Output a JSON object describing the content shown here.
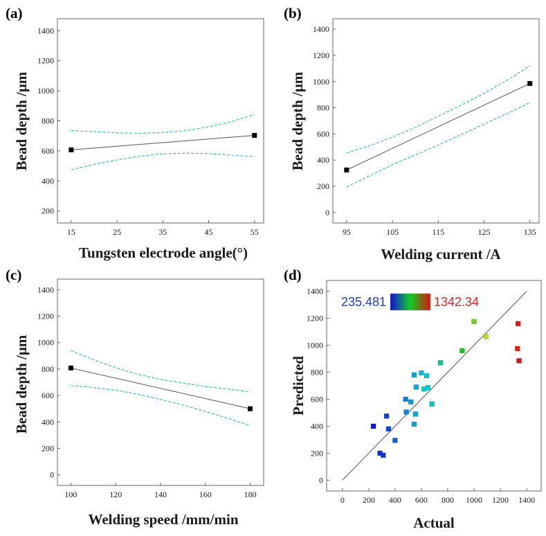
{
  "colors": {
    "fit_line": "#555555",
    "ci_line": "#22b8c8",
    "axis": "#666666",
    "colorbar_min_text": "#1f3ec8",
    "colorbar_max_text": "#e32222"
  },
  "chart_data": [
    {
      "id": "a",
      "panel_label": "(a)",
      "type": "line",
      "title": "",
      "xlabel": "Tungsten electrode angle(°)",
      "ylabel": "Bead depth /μm",
      "xlim": [
        12,
        57
      ],
      "ylim": [
        120,
        1480
      ],
      "xticks": [
        15,
        25,
        35,
        45,
        55
      ],
      "yticks": [
        200,
        400,
        600,
        800,
        1000,
        1200,
        1400
      ],
      "series": [
        {
          "name": "prediction",
          "x": [
            15,
            55
          ],
          "y": [
            607,
            703
          ]
        },
        {
          "name": "upper 95% CI",
          "x": [
            15,
            20,
            25,
            30,
            35,
            40,
            45,
            50,
            55
          ],
          "y": [
            735,
            728,
            720,
            718,
            722,
            735,
            760,
            795,
            842
          ]
        },
        {
          "name": "lower 95% CI",
          "x": [
            15,
            20,
            25,
            30,
            35,
            40,
            45,
            50,
            55
          ],
          "y": [
            475,
            510,
            540,
            565,
            580,
            585,
            582,
            572,
            562
          ]
        }
      ],
      "design_points": [
        {
          "x": 15,
          "y": 607
        },
        {
          "x": 55,
          "y": 703
        }
      ]
    },
    {
      "id": "b",
      "panel_label": "(b)",
      "type": "line",
      "title": "",
      "xlabel": "Welding current /A",
      "ylabel": "Bead depth /μm",
      "xlim": [
        92,
        137
      ],
      "ylim": [
        -80,
        1480
      ],
      "xticks": [
        95,
        105,
        115,
        125,
        135
      ],
      "yticks": [
        0,
        200,
        400,
        600,
        800,
        1000,
        1200,
        1400
      ],
      "series": [
        {
          "name": "prediction",
          "x": [
            95,
            135
          ],
          "y": [
            325,
            985
          ]
        },
        {
          "name": "upper 95% CI",
          "x": [
            95,
            100,
            105,
            110,
            115,
            120,
            125,
            130,
            135
          ],
          "y": [
            455,
            510,
            575,
            650,
            735,
            820,
            910,
            1010,
            1120
          ]
        },
        {
          "name": "lower 95% CI",
          "x": [
            95,
            100,
            105,
            110,
            115,
            120,
            125,
            130,
            135
          ],
          "y": [
            195,
            280,
            365,
            440,
            515,
            595,
            675,
            755,
            840
          ]
        }
      ],
      "design_points": [
        {
          "x": 95,
          "y": 325
        },
        {
          "x": 135,
          "y": 985
        }
      ]
    },
    {
      "id": "c",
      "panel_label": "(c)",
      "type": "line",
      "title": "",
      "xlabel": "Welding speed /mm/min",
      "ylabel": "Bead depth /μm",
      "xlim": [
        94,
        186
      ],
      "ylim": [
        -80,
        1480
      ],
      "xticks": [
        100,
        120,
        140,
        160,
        180
      ],
      "yticks": [
        0,
        200,
        400,
        600,
        800,
        1000,
        1200,
        1400
      ],
      "series": [
        {
          "name": "prediction",
          "x": [
            100,
            180
          ],
          "y": [
            808,
            500
          ]
        },
        {
          "name": "upper 95% CI",
          "x": [
            100,
            110,
            120,
            130,
            140,
            150,
            160,
            170,
            180
          ],
          "y": [
            940,
            870,
            810,
            760,
            722,
            695,
            668,
            648,
            628
          ]
        },
        {
          "name": "lower 95% CI",
          "x": [
            100,
            110,
            120,
            130,
            140,
            150,
            160,
            170,
            180
          ],
          "y": [
            675,
            660,
            640,
            610,
            570,
            528,
            480,
            428,
            372
          ]
        }
      ],
      "design_points": [
        {
          "x": 100,
          "y": 808
        },
        {
          "x": 180,
          "y": 500
        }
      ]
    },
    {
      "id": "d",
      "panel_label": "(d)",
      "type": "scatter",
      "title": "",
      "xlabel": "Actual",
      "ylabel": "Predicted",
      "xlim": [
        -120,
        1510
      ],
      "ylim": [
        -80,
        1480
      ],
      "xticks": [
        0,
        200,
        400,
        600,
        800,
        1000,
        1200,
        1400
      ],
      "yticks": [
        0,
        200,
        400,
        600,
        800,
        1000,
        1200,
        1400
      ],
      "reference_line": {
        "x": [
          0,
          1400
        ],
        "y": [
          0,
          1400
        ]
      },
      "colorbar": {
        "min": 235.481,
        "max": 1342.34,
        "min_label": "235.481",
        "max_label": "1342.34"
      },
      "points": [
        {
          "x": 235,
          "y": 400
        },
        {
          "x": 285,
          "y": 200
        },
        {
          "x": 310,
          "y": 185
        },
        {
          "x": 335,
          "y": 475
        },
        {
          "x": 350,
          "y": 380
        },
        {
          "x": 400,
          "y": 295
        },
        {
          "x": 480,
          "y": 600
        },
        {
          "x": 485,
          "y": 505
        },
        {
          "x": 520,
          "y": 580
        },
        {
          "x": 545,
          "y": 780
        },
        {
          "x": 545,
          "y": 415
        },
        {
          "x": 555,
          "y": 490
        },
        {
          "x": 560,
          "y": 690
        },
        {
          "x": 600,
          "y": 795
        },
        {
          "x": 620,
          "y": 675
        },
        {
          "x": 640,
          "y": 775
        },
        {
          "x": 650,
          "y": 685
        },
        {
          "x": 680,
          "y": 565
        },
        {
          "x": 745,
          "y": 870
        },
        {
          "x": 910,
          "y": 960
        },
        {
          "x": 1000,
          "y": 1175
        },
        {
          "x": 1090,
          "y": 1065
        },
        {
          "x": 1330,
          "y": 975
        },
        {
          "x": 1335,
          "y": 1160
        },
        {
          "x": 1342,
          "y": 885
        }
      ]
    }
  ]
}
